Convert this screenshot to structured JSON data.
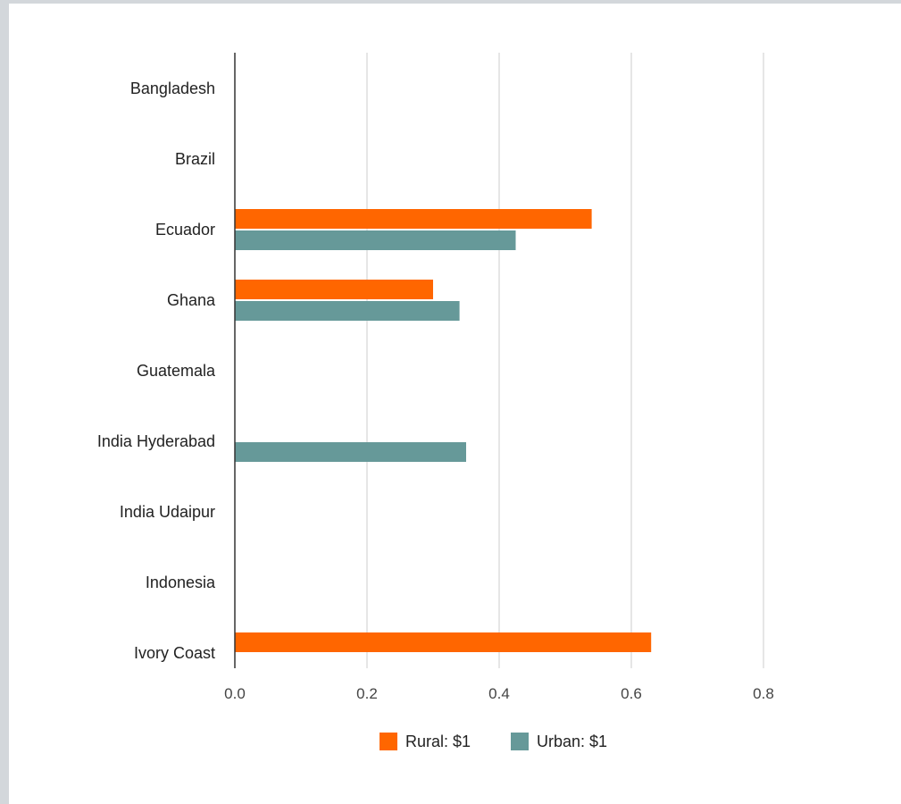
{
  "colors": {
    "rural": "#ff6600",
    "urban": "#669999",
    "gridline": "#cccccc",
    "axis": "#333333"
  },
  "chart_data": {
    "type": "bar",
    "orientation": "horizontal",
    "categories": [
      "Bangladesh",
      "Brazil",
      "Ecuador",
      "Ghana",
      "Guatemala",
      "India Hyderabad",
      "India Udaipur",
      "Indonesia",
      "Ivory Coast"
    ],
    "series": [
      {
        "name": "Rural: $1",
        "color": "#ff6600",
        "values": [
          null,
          null,
          0.54,
          0.3,
          null,
          null,
          null,
          null,
          0.63
        ]
      },
      {
        "name": "Urban: $1",
        "color": "#669999",
        "values": [
          null,
          null,
          0.425,
          0.34,
          null,
          0.35,
          null,
          null,
          null
        ]
      }
    ],
    "xlim": [
      0,
      0.8
    ],
    "xticks": [
      "0.0",
      "0.2",
      "0.4",
      "0.6",
      "0.8"
    ],
    "grid": true,
    "legend_position": "bottom"
  }
}
